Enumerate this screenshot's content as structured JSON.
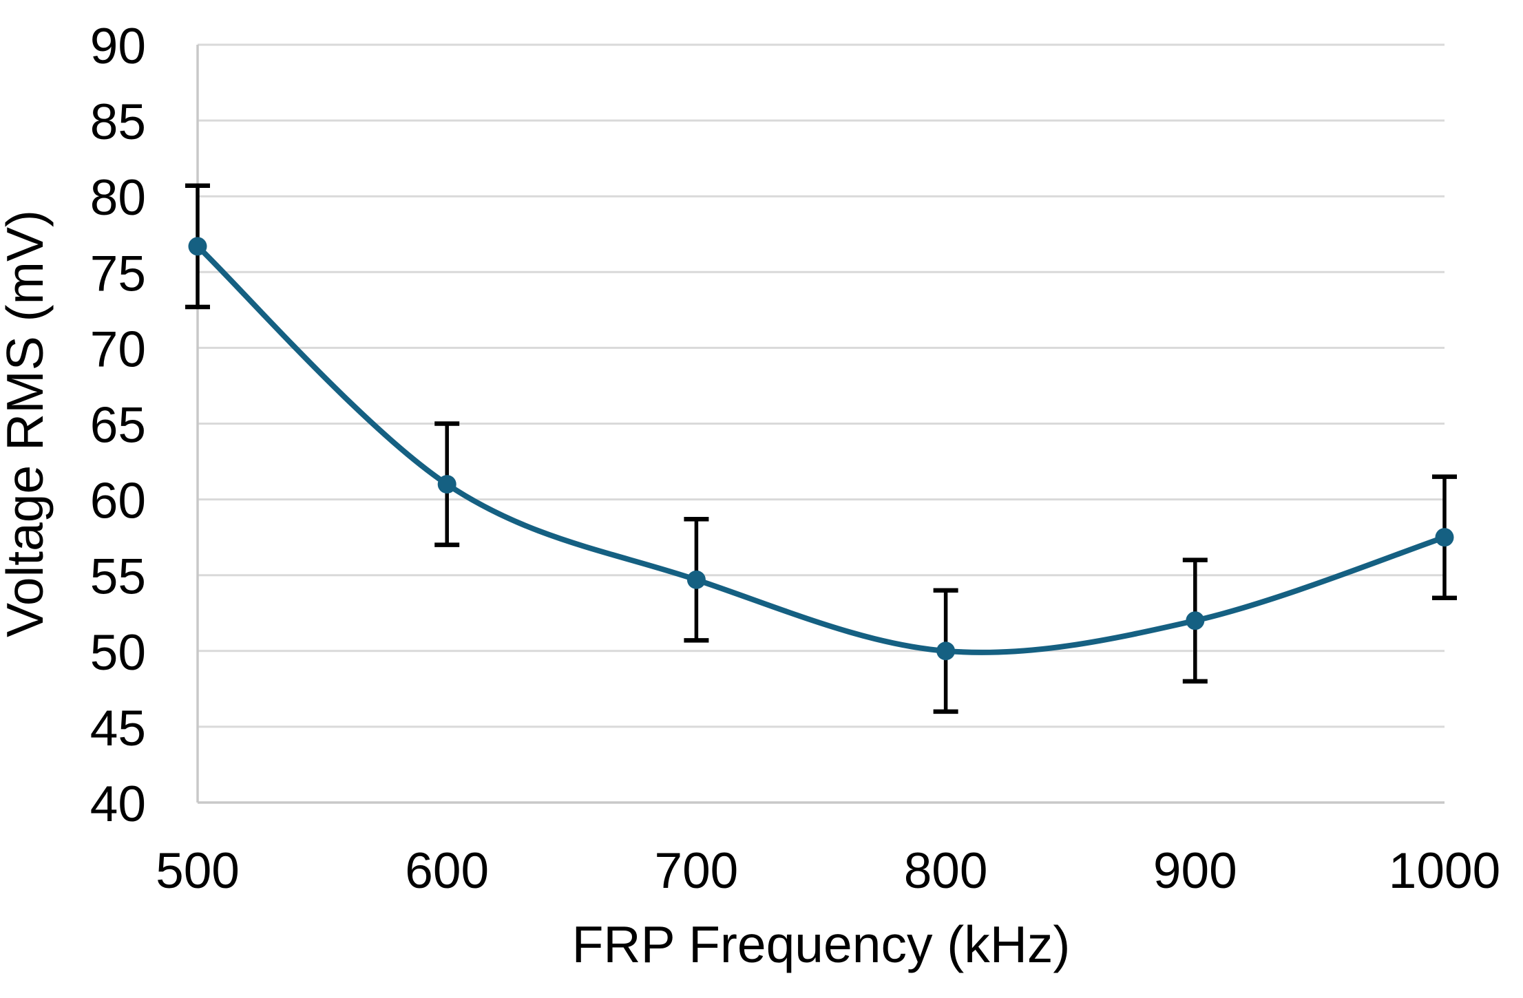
{
  "chart_data": {
    "type": "line",
    "title": "",
    "xlabel": "FRP Frequency (kHz)",
    "ylabel": "Voltage RMS (mV)",
    "x": [
      500,
      600,
      700,
      800,
      900,
      1000
    ],
    "series": [
      {
        "name": "Voltage RMS",
        "values": [
          76.7,
          61.0,
          54.7,
          50.0,
          52.0,
          57.5
        ],
        "error_y": [
          4,
          4,
          4,
          4,
          4,
          4
        ]
      }
    ],
    "xticks": [
      500,
      600,
      700,
      800,
      900,
      1000
    ],
    "yticks": [
      40,
      45,
      50,
      55,
      60,
      65,
      70,
      75,
      80,
      85,
      90
    ],
    "xlim": [
      500,
      1000
    ],
    "ylim": [
      40,
      90
    ],
    "grid": "horizontal",
    "legend": "none",
    "line_style": "smooth",
    "marker": "circle",
    "colors": {
      "line": "#156082",
      "marker": "#156082",
      "error_bar": "#000000",
      "gridline": "#d9d9d9",
      "axis_line": "#c8c8c8",
      "text": "#000000",
      "background": "#ffffff"
    }
  }
}
